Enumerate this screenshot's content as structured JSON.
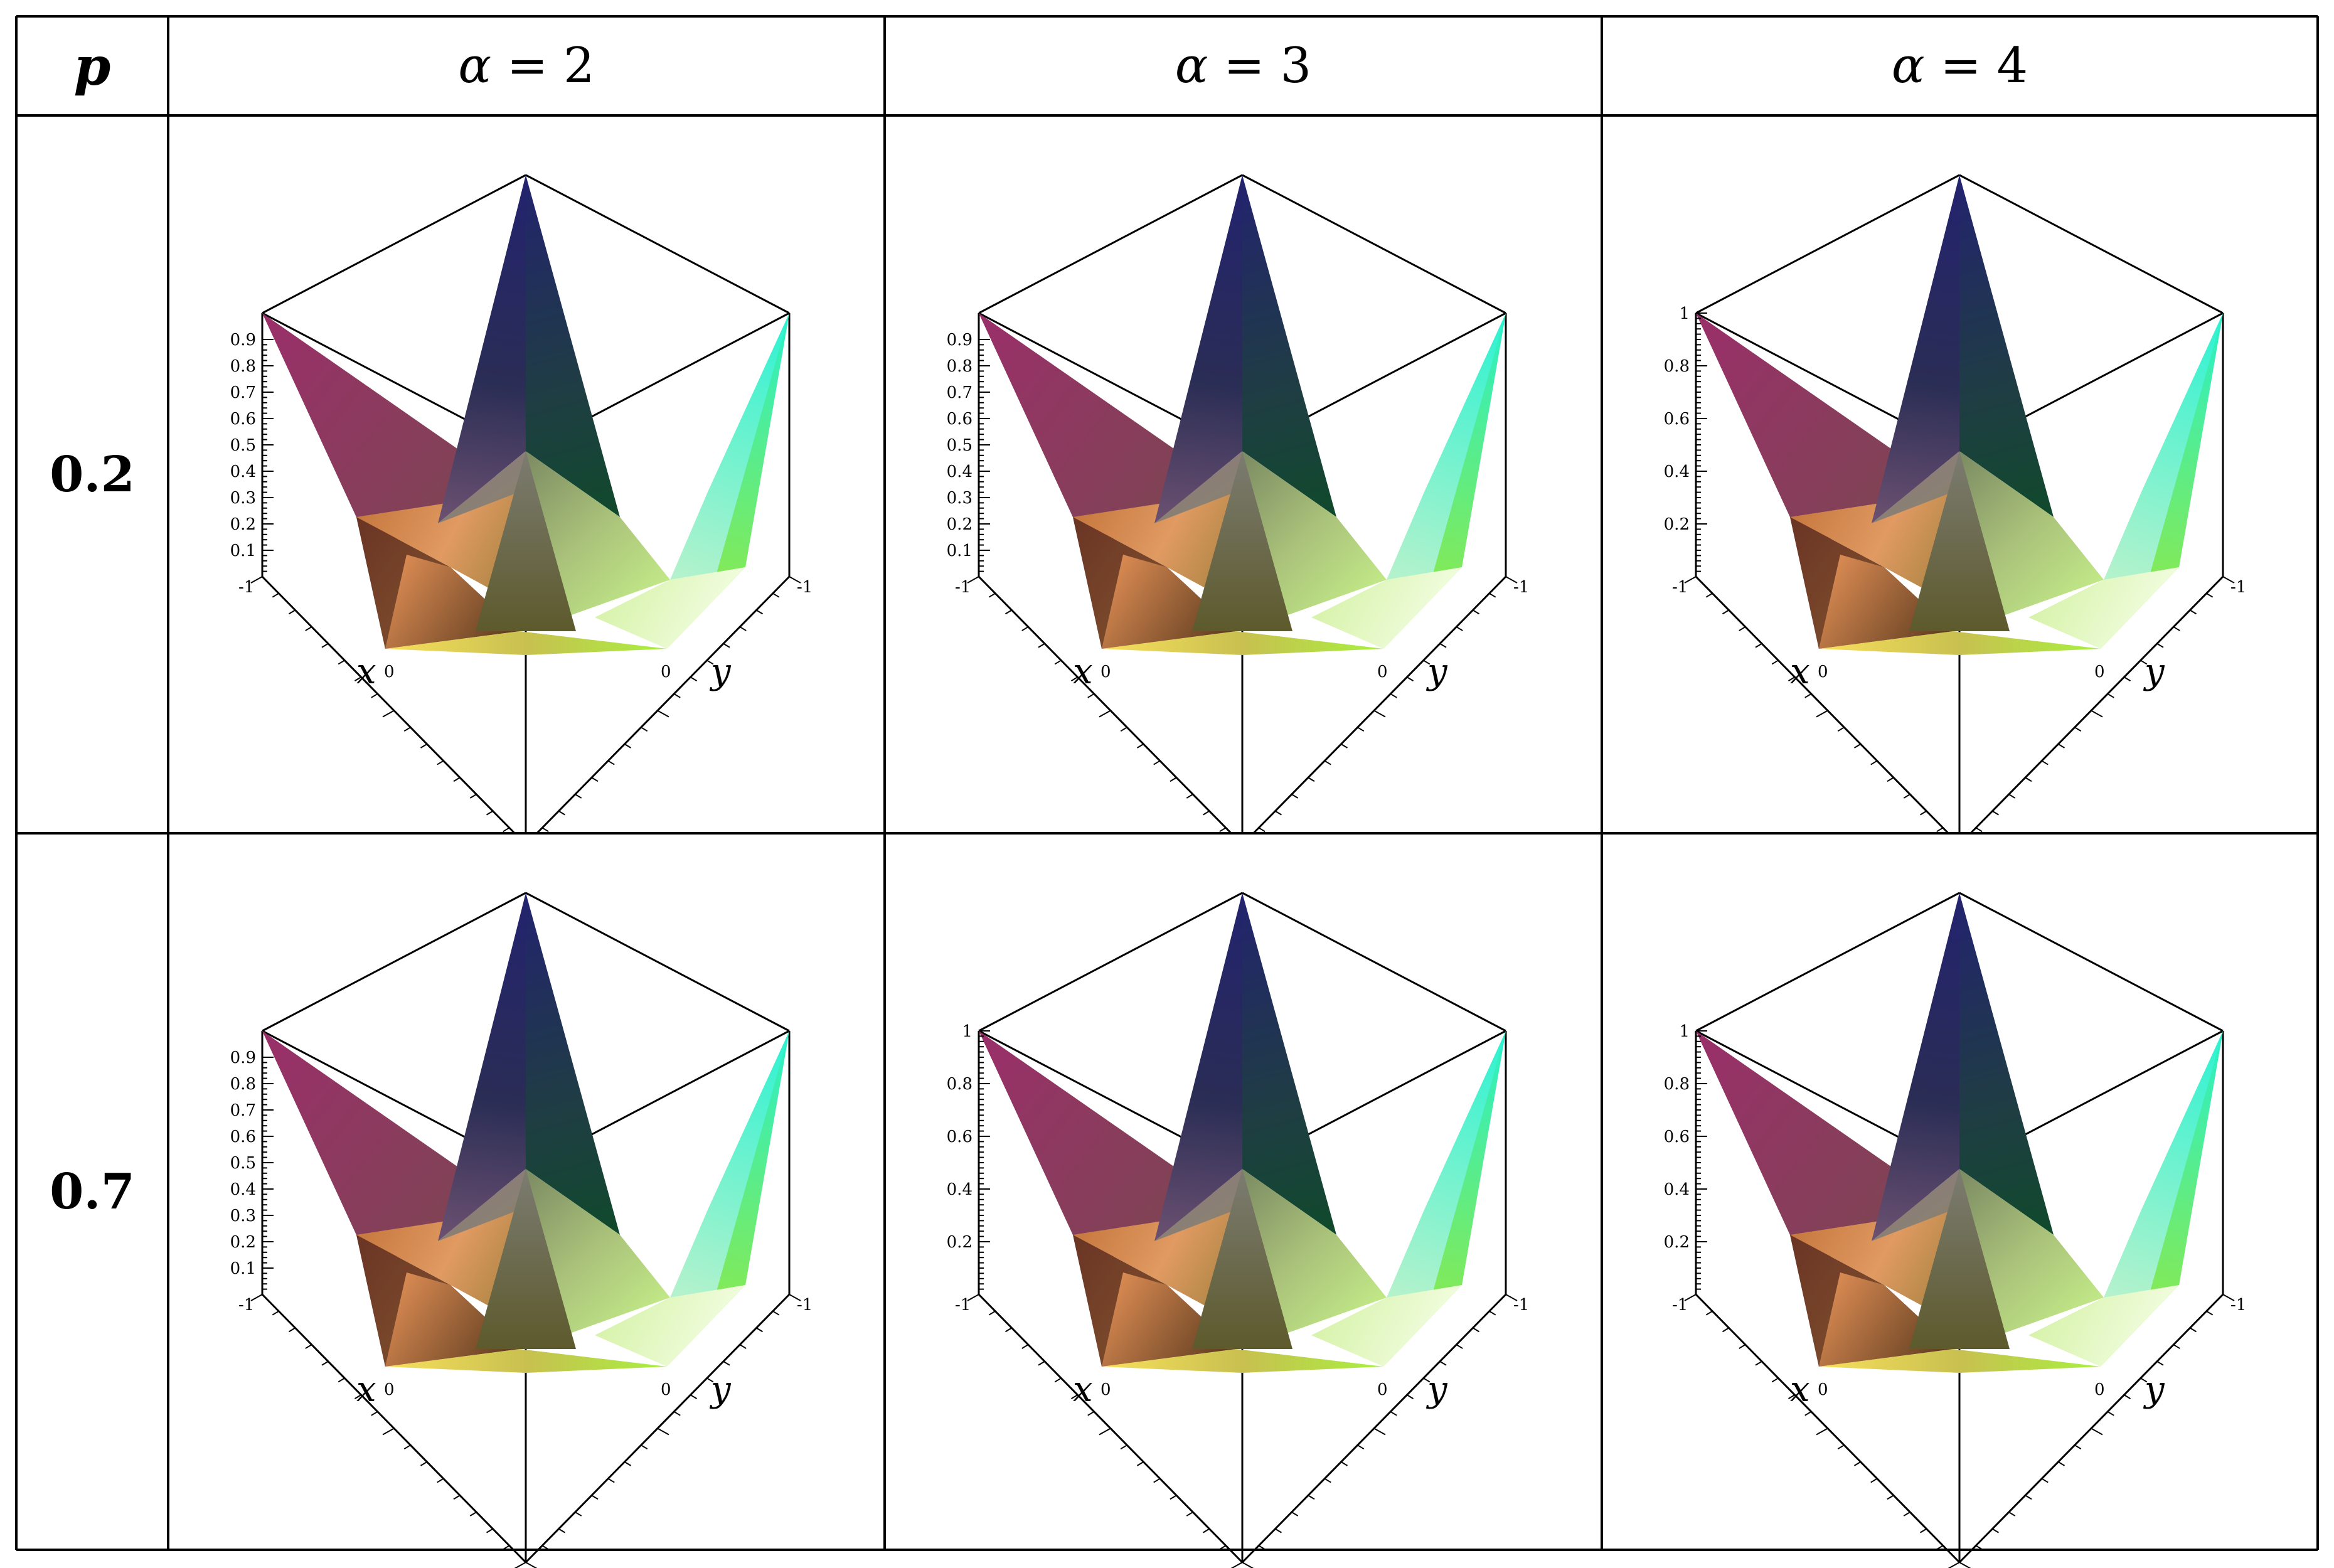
{
  "table": {
    "corner_label": "p",
    "columns": [
      {
        "symbol": "α",
        "relation": " = 2"
      },
      {
        "symbol": "α",
        "relation": " = 3"
      },
      {
        "symbol": "α",
        "relation": " = 4"
      }
    ],
    "rows": [
      {
        "label": "0.2"
      },
      {
        "label": "0.7"
      }
    ]
  },
  "colors": {
    "peak_blue": "#23236f",
    "magenta": "#8b2b61",
    "brown": "#6b3424",
    "orange": "#d98a52",
    "yellow": "#f8df5c",
    "lime": "#9be83a",
    "cyan": "#2af2d2",
    "dark_green": "#0f4a2a",
    "white_tint": "#f6ffe9"
  },
  "chart_data": [
    {
      "type": "surface3d",
      "row_label": "0.2",
      "column_label": "α = 2",
      "zticks": [
        "0.1",
        "0.2",
        "0.3",
        "0.4",
        "0.5",
        "0.6",
        "0.7",
        "0.8",
        "0.9"
      ],
      "xlabel": "x",
      "ylabel": "y",
      "xticks": [
        "-1",
        "0"
      ],
      "yticks": [
        "0",
        "-1"
      ]
    },
    {
      "type": "surface3d",
      "row_label": "0.2",
      "column_label": "α = 3",
      "zticks": [
        "0.1",
        "0.2",
        "0.3",
        "0.4",
        "0.5",
        "0.6",
        "0.7",
        "0.8",
        "0.9"
      ],
      "xlabel": "x",
      "ylabel": "y",
      "xticks": [
        "-1",
        "0"
      ],
      "yticks": [
        "0",
        "-1"
      ]
    },
    {
      "type": "surface3d",
      "row_label": "0.2",
      "column_label": "α = 4",
      "zticks": [
        "0.2",
        "0.4",
        "0.6",
        "0.8",
        "1"
      ],
      "xlabel": "x",
      "ylabel": "y",
      "xticks": [
        "-1",
        "0"
      ],
      "yticks": [
        "0",
        "-1"
      ]
    },
    {
      "type": "surface3d",
      "row_label": "0.7",
      "column_label": "α = 2",
      "zticks": [
        "0.1",
        "0.2",
        "0.3",
        "0.4",
        "0.5",
        "0.6",
        "0.7",
        "0.8",
        "0.9"
      ],
      "xlabel": "x",
      "ylabel": "y",
      "xticks": [
        "-1",
        "0"
      ],
      "yticks": [
        "0",
        "-1"
      ]
    },
    {
      "type": "surface3d",
      "row_label": "0.7",
      "column_label": "α = 3",
      "zticks": [
        "0.2",
        "0.4",
        "0.6",
        "0.8",
        "1"
      ],
      "xlabel": "x",
      "ylabel": "y",
      "xticks": [
        "-1",
        "0"
      ],
      "yticks": [
        "0",
        "-1"
      ]
    },
    {
      "type": "surface3d",
      "row_label": "0.7",
      "column_label": "α = 4",
      "zticks": [
        "0.2",
        "0.4",
        "0.6",
        "0.8",
        "1"
      ],
      "xlabel": "x",
      "ylabel": "y",
      "xticks": [
        "-1",
        "0"
      ],
      "yticks": [
        "0",
        "-1"
      ]
    }
  ]
}
